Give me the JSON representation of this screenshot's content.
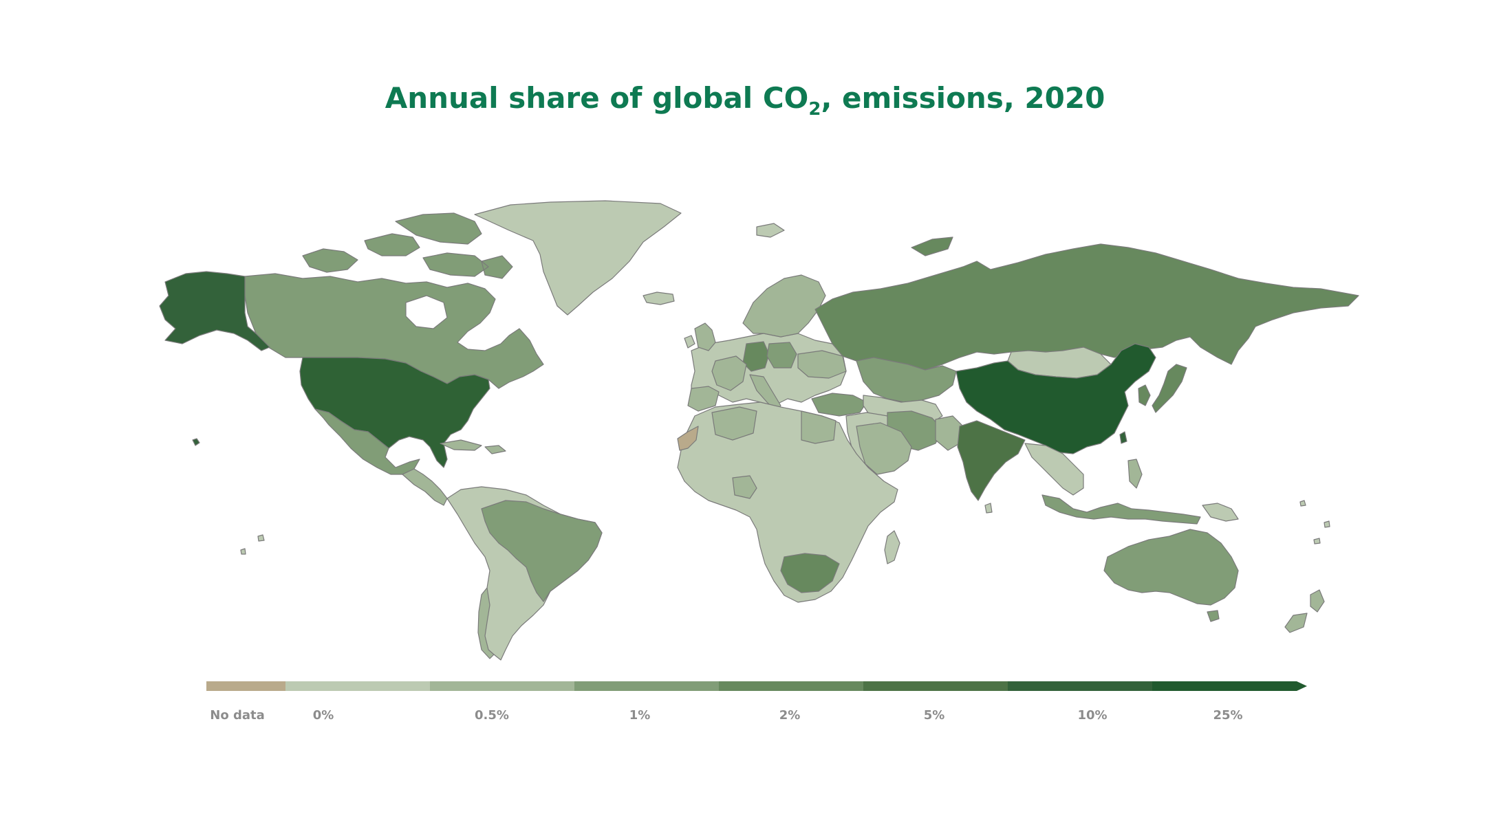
{
  "title": {
    "prefix": "Annual share of global CO",
    "subscript": "2",
    "suffix": ", emissions, 2020"
  },
  "legend": {
    "bins": [
      {
        "label": "No data",
        "color": "#b9aa8b"
      },
      {
        "label": "0%",
        "color": "#bccab2"
      },
      {
        "label": "0.5%",
        "color": "#a2b697"
      },
      {
        "label": "1%",
        "color": "#819d77"
      },
      {
        "label": "2%",
        "color": "#67895e"
      },
      {
        "label": "5%",
        "color": "#4d7346"
      },
      {
        "label": "10%",
        "color": "#33623a"
      },
      {
        "label": "25%",
        "color": "#215a2e"
      }
    ]
  },
  "colors": {
    "title": "#0e7a52",
    "border": "#7a7a7a",
    "no_data": "#b9aa8b",
    "bin_0": "#bccab2",
    "bin_05": "#a2b697",
    "bin_1": "#819d77",
    "bin_2": "#67895e",
    "bin_5": "#4d7346",
    "bin_10": "#33623a",
    "bin_25": "#215a2e"
  }
}
